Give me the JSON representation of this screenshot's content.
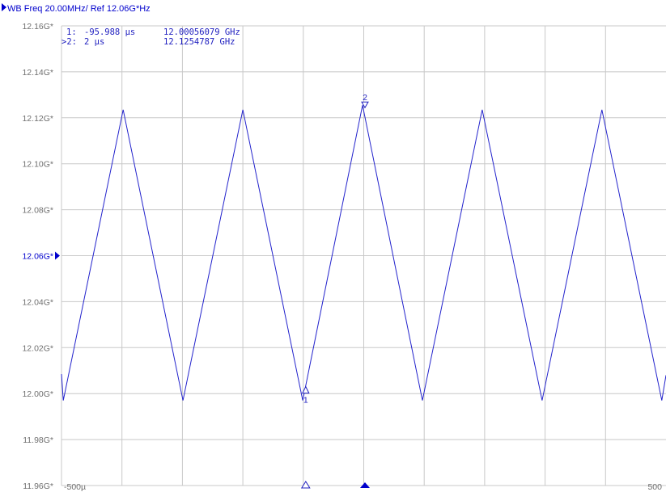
{
  "chart_data": {
    "type": "line",
    "title": "WB Freq 20.00MHz/ Ref 12.06G*Hz",
    "ylabel": "",
    "xlabel": "",
    "ylim": [
      11.96,
      12.16
    ],
    "xlim": [
      -500,
      500
    ],
    "y_ticks": [
      "12.16G*",
      "12.14G*",
      "12.12G*",
      "12.10G*",
      "12.08G*",
      "12.06G*",
      "12.04G*",
      "12.02G*",
      "12.00G*",
      "11.98G*",
      "11.96G*"
    ],
    "y_tick_values": [
      12.16,
      12.14,
      12.12,
      12.1,
      12.08,
      12.06,
      12.04,
      12.02,
      12.0,
      11.98,
      11.96
    ],
    "ref_level": 12.06,
    "x_tick_labels": {
      "left": "-500µ",
      "right": "500"
    },
    "grid": true,
    "x_gridlines": [
      -400,
      -300,
      -200,
      -100,
      0,
      100,
      200,
      300,
      400
    ],
    "series": [
      {
        "color": "#2222cc",
        "x": [
          -500,
          -497,
          -398,
          -299,
          -200,
          -101,
          -2,
          97,
          196,
          295,
          394,
          493,
          500
        ],
        "y": [
          12.0085,
          11.997,
          12.1235,
          11.997,
          12.1235,
          11.997,
          12.1255,
          11.997,
          12.1235,
          11.997,
          12.1235,
          11.997,
          12.008
        ]
      }
    ],
    "markers": [
      {
        "label": "1",
        "x": -95.988,
        "y": 12.00056079,
        "style": "outline"
      },
      {
        "label": "2",
        "x": 2,
        "y": 12.1254787,
        "style": "filled"
      }
    ],
    "marker_readout": [
      {
        "prefix": "1:",
        "time": "-95.988 µs",
        "freq": "12.00056079 GHz"
      },
      {
        "prefix": ">2:",
        "time": "2 µs",
        "freq": "12.1254787 GHz"
      }
    ],
    "colors": {
      "trace": "#2222cc",
      "grid": "#c8c8c8",
      "text": "#2020c0",
      "tick": "#6f6f6f"
    }
  }
}
